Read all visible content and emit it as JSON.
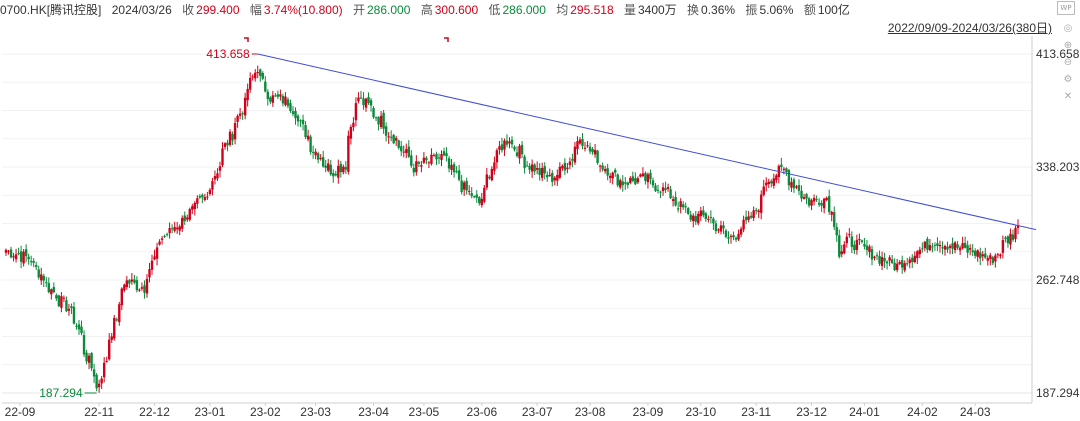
{
  "header": {
    "code": "0700.HK[腾讯控股]",
    "date": "2024/03/26",
    "close_label": "收",
    "close": "299.400",
    "change_label": "幅",
    "change": "3.74%(10.800)",
    "open_label": "开",
    "open": "286.000",
    "high_label": "高",
    "high": "300.600",
    "low_label": "低",
    "low": "286.000",
    "avg_label": "均",
    "avg": "295.518",
    "vol_label": "量",
    "vol": "3400万",
    "turnover_label": "换",
    "turnover": "0.36%",
    "amp_label": "振",
    "amp": "5.06%",
    "amount_label": "额",
    "amount": "100亿",
    "range": "2022/09/09-2024/03/26(380日)"
  },
  "icons": [
    "wp-icon",
    "target-icon",
    "zoom-in-icon",
    "zoom-out-icon",
    "settings-icon",
    "close-icon"
  ],
  "colors": {
    "up": "#d0021b",
    "down": "#0a8a3a",
    "trendline": "#3f4dd8"
  },
  "chart_data": {
    "type": "candlestick",
    "title": "",
    "xlabel": "",
    "ylabel": "",
    "ylim": [
      187.294,
      413.658
    ],
    "y_ticks": [
      "413.658",
      "338.203",
      "262.748",
      "187.294"
    ],
    "x_ticks": [
      "22-09",
      "22-11",
      "22-12",
      "23-01",
      "23-02",
      "23-03",
      "23-04",
      "23-05",
      "23-06",
      "23-07",
      "23-08",
      "23-09",
      "23-10",
      "23-11",
      "23-12",
      "24-01",
      "24-02",
      "24-03"
    ],
    "annotations": {
      "max_label": "413.658",
      "min_label": "187.294"
    },
    "trendline": {
      "from": [
        "23-01",
        413.658
      ],
      "to": [
        "24-03",
        299.4
      ]
    },
    "anchors": [
      [
        "2022-09-09",
        283
      ],
      [
        "2022-09-23",
        277
      ],
      [
        "2022-10-05",
        256
      ],
      [
        "2022-10-17",
        240
      ],
      [
        "2022-10-31",
        190
      ],
      [
        "2022-11-04",
        210
      ],
      [
        "2022-11-15",
        262
      ],
      [
        "2022-11-25",
        258
      ],
      [
        "2022-12-05",
        290
      ],
      [
        "2022-12-16",
        302
      ],
      [
        "2022-12-30",
        318
      ],
      [
        "2023-01-10",
        352
      ],
      [
        "2023-01-20",
        380
      ],
      [
        "2023-01-27",
        405
      ],
      [
        "2023-02-03",
        385
      ],
      [
        "2023-02-14",
        382
      ],
      [
        "2023-02-28",
        350
      ],
      [
        "2023-03-10",
        335
      ],
      [
        "2023-03-17",
        340
      ],
      [
        "2023-03-24",
        385
      ],
      [
        "2023-03-31",
        378
      ],
      [
        "2023-04-12",
        360
      ],
      [
        "2023-04-25",
        338
      ],
      [
        "2023-05-10",
        345
      ],
      [
        "2023-05-24",
        322
      ],
      [
        "2023-05-31",
        314
      ],
      [
        "2023-06-09",
        345
      ],
      [
        "2023-06-16",
        358
      ],
      [
        "2023-06-27",
        340
      ],
      [
        "2023-07-10",
        330
      ],
      [
        "2023-07-20",
        342
      ],
      [
        "2023-07-26",
        358
      ],
      [
        "2023-08-07",
        340
      ],
      [
        "2023-08-18",
        328
      ],
      [
        "2023-08-31",
        330
      ],
      [
        "2023-09-12",
        322
      ],
      [
        "2023-09-25",
        305
      ],
      [
        "2023-10-05",
        305
      ],
      [
        "2023-10-17",
        290
      ],
      [
        "2023-10-31",
        306
      ],
      [
        "2023-11-07",
        330
      ],
      [
        "2023-11-16",
        336
      ],
      [
        "2023-11-30",
        315
      ],
      [
        "2023-12-11",
        318
      ],
      [
        "2023-12-18",
        280
      ],
      [
        "2023-12-22",
        290
      ],
      [
        "2024-01-05",
        280
      ],
      [
        "2024-01-18",
        272
      ],
      [
        "2024-01-25",
        278
      ],
      [
        "2024-02-08",
        289
      ],
      [
        "2024-02-20",
        285
      ],
      [
        "2024-03-04",
        280
      ],
      [
        "2024-03-11",
        276
      ],
      [
        "2024-03-20",
        290
      ],
      [
        "2024-03-26",
        299.4
      ]
    ]
  }
}
